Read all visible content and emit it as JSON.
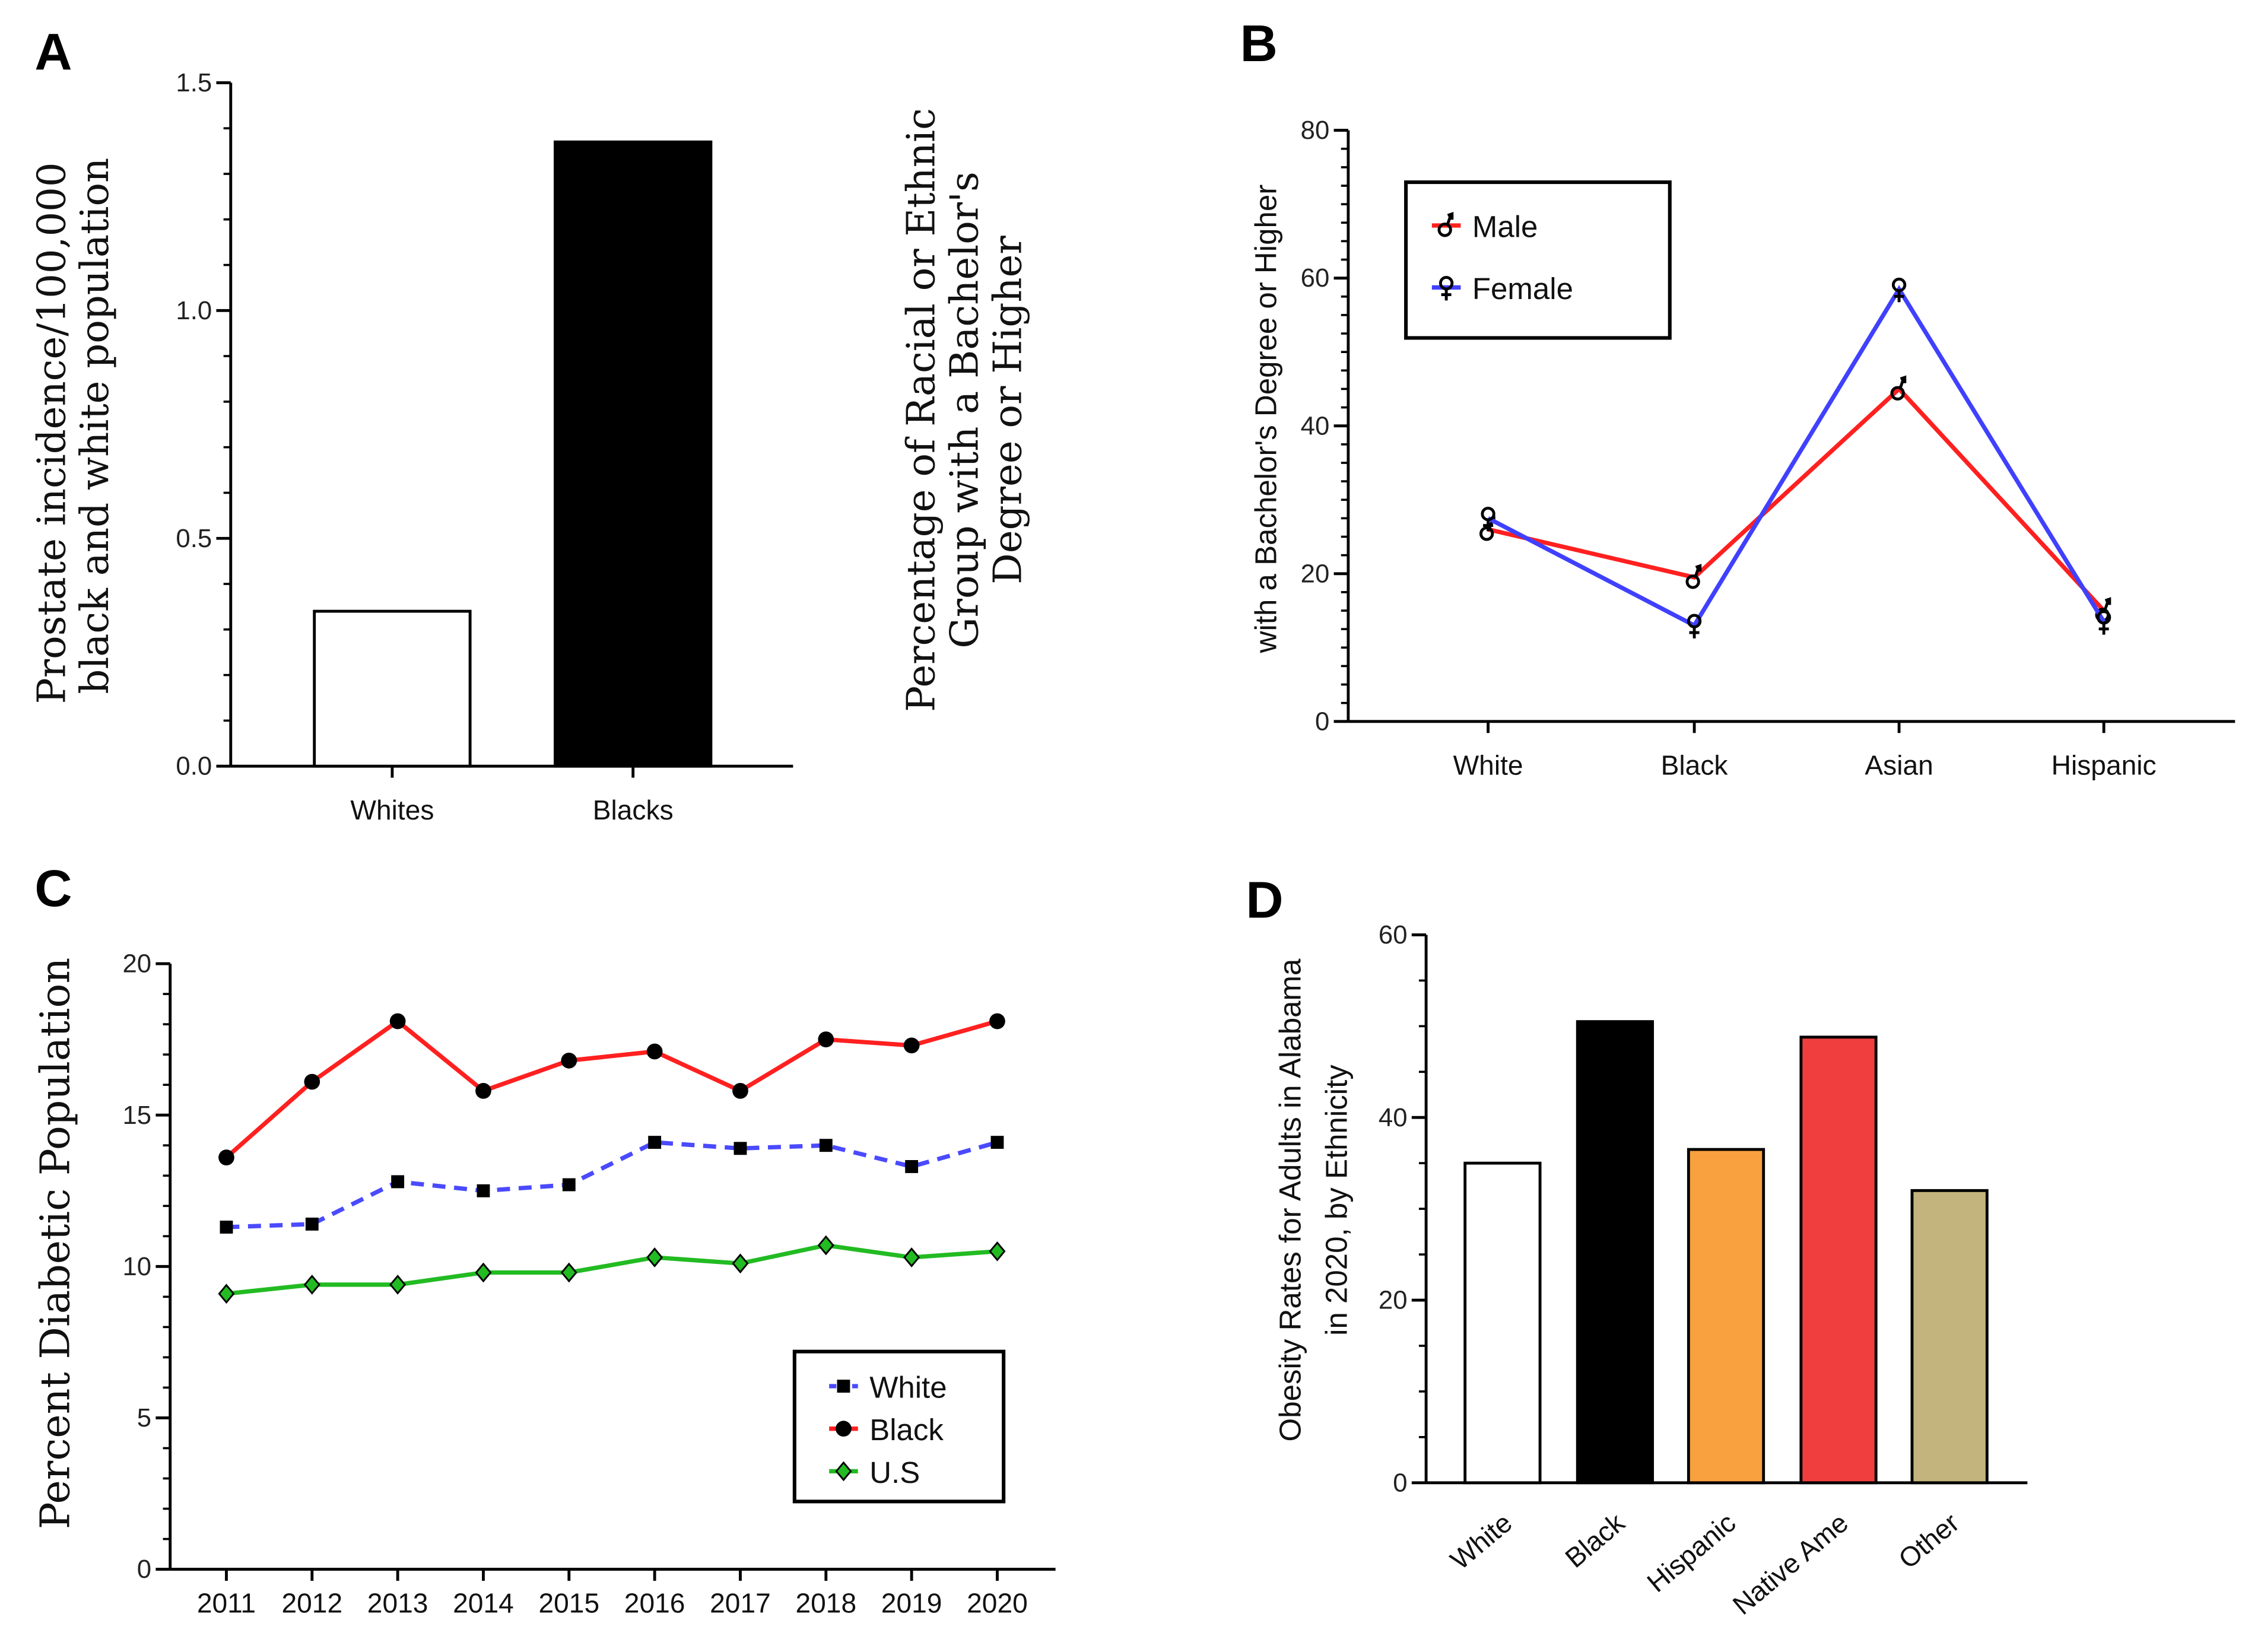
{
  "chart_data": [
    {
      "panel": "A",
      "type": "bar",
      "ylabel": [
        "Prostate incidence/100,000",
        "black and white population"
      ],
      "categories": [
        "Whites",
        "Blacks"
      ],
      "values": [
        0.34,
        1.37
      ],
      "colors": [
        "#ffffff",
        "#000000"
      ],
      "ylim": [
        0,
        1.5
      ],
      "yticks": [
        "0.0",
        "0.5",
        "1.0",
        "1.5"
      ],
      "side_text": [
        "Percentage of Racial or Ethnic",
        "Group with a Bachelor's",
        "Degree or Higher"
      ]
    },
    {
      "panel": "B",
      "type": "line",
      "ylabel": "with a Bachelor's Degree or Higher",
      "categories": [
        "White",
        "Black",
        "Asian",
        "Hispanic"
      ],
      "series": [
        {
          "name": "Male",
          "values": [
            26,
            19.5,
            45,
            15
          ],
          "color": "#ff2020",
          "marker": "male-symbol"
        },
        {
          "name": "Female",
          "values": [
            27.5,
            13,
            58.5,
            13.5
          ],
          "color": "#4040ff",
          "marker": "female-symbol"
        }
      ],
      "ylim": [
        0,
        80
      ],
      "yticks": [
        "0",
        "20",
        "40",
        "60",
        "80"
      ],
      "legend": "top-left"
    },
    {
      "panel": "C",
      "type": "line",
      "ylabel": "Percent Diabetic Population",
      "categories": [
        "2011",
        "2012",
        "2013",
        "2014",
        "2015",
        "2016",
        "2017",
        "2018",
        "2019",
        "2020"
      ],
      "series": [
        {
          "name": "White",
          "values": [
            11.3,
            11.4,
            12.8,
            12.5,
            12.7,
            14.1,
            13.9,
            14.0,
            13.3,
            14.1
          ],
          "color": "#4a4aff",
          "marker": "square",
          "dashed": true
        },
        {
          "name": "Black",
          "values": [
            13.6,
            16.1,
            18.1,
            15.8,
            16.8,
            17.1,
            15.8,
            17.5,
            17.3,
            18.1
          ],
          "color": "#ff2020",
          "marker": "circle"
        },
        {
          "name": "U.S",
          "values": [
            9.1,
            9.4,
            9.4,
            9.8,
            9.8,
            10.3,
            10.1,
            10.7,
            10.3,
            10.5
          ],
          "color": "#22bb22",
          "marker": "diamond"
        }
      ],
      "ylim": [
        0,
        20
      ],
      "yticks": [
        "0",
        "5",
        "10",
        "15",
        "20"
      ],
      "legend": "bottom-right"
    },
    {
      "panel": "D",
      "type": "bar",
      "ylabel": [
        "Obesity Rates for Adults in Alabama",
        "in 2020, by Ethnicity"
      ],
      "categories": [
        "White",
        "Black",
        "Hispanic",
        "Native Ame",
        "Other"
      ],
      "values": [
        35,
        50.5,
        36.5,
        48.8,
        32
      ],
      "colors": [
        "#ffffff",
        "#000000",
        "#f9a03f",
        "#f03e3e",
        "#c2b47c"
      ],
      "ylim": [
        0,
        60
      ],
      "yticks": [
        "0",
        "20",
        "40",
        "60"
      ]
    }
  ],
  "panel_letters": [
    "A",
    "B",
    "C",
    "D"
  ]
}
